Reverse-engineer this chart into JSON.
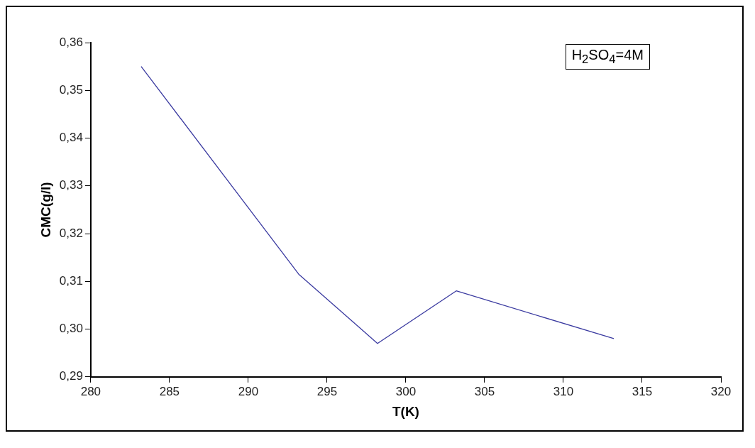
{
  "chart_data": {
    "type": "line",
    "xlabel": "T(K)",
    "ylabel": "CMC(g/l)",
    "annotations": [
      "H$_{2}$SO$_{4}$=4M"
    ],
    "x": [
      283.2,
      293.2,
      298.2,
      303.2,
      313.2
    ],
    "series": [
      {
        "color": "#3a3aa0",
        "values": [
          0.355,
          0.3115,
          0.297,
          0.308,
          0.298
        ]
      }
    ],
    "xlim": [
      280,
      320
    ],
    "xticks": [
      280,
      285,
      290,
      295,
      300,
      305,
      310,
      315,
      320
    ],
    "ylim": [
      0.29,
      0.36
    ],
    "yticks": [
      {
        "value": 0.29,
        "label": "0,29"
      },
      {
        "value": 0.3,
        "label": "0,30"
      },
      {
        "value": 0.31,
        "label": "0,31"
      },
      {
        "value": 0.32,
        "label": "0,32"
      },
      {
        "value": 0.33,
        "label": "0,33"
      },
      {
        "value": 0.34,
        "label": "0,34"
      },
      {
        "value": 0.35,
        "label": "0,35"
      },
      {
        "value": 0.36,
        "label": "0,36"
      }
    ],
    "grid": false,
    "legend": false,
    "marker": "none",
    "line_style": "solid"
  }
}
